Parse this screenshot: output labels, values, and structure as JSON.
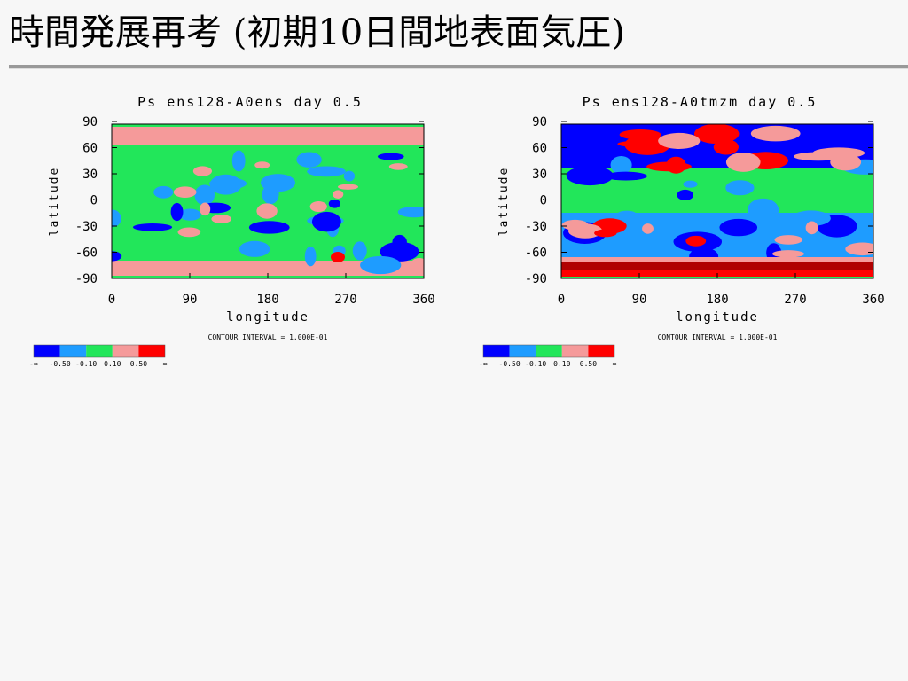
{
  "title": "時間発展再考 (初期10日間地表面気圧)",
  "panels": [
    {
      "title": "Ps ens128-A0ens  day 0.5",
      "style": "ens",
      "yticks": [
        "90",
        "60",
        "30",
        "0",
        "-30",
        "-60",
        "-90"
      ],
      "xticks": [
        "0",
        "90",
        "180",
        "270",
        "360"
      ],
      "xlabel": "longitude",
      "ylabel": "latitude",
      "contour_interval": "CONTOUR INTERVAL = 1.000E-01",
      "legend": [
        "-∞",
        "-0.50",
        "-0.10",
        "0.10",
        "0.50",
        "∞"
      ]
    },
    {
      "title": "Ps ens128-A0tmzm day 0.5",
      "style": "tmzm",
      "yticks": [
        "90",
        "60",
        "30",
        "0",
        "-30",
        "-60",
        "-90"
      ],
      "xticks": [
        "0",
        "90",
        "180",
        "270",
        "360"
      ],
      "xlabel": "longitude",
      "ylabel": "latitude",
      "contour_interval": "CONTOUR INTERVAL = 1.000E-01",
      "legend": [
        "-∞",
        "-0.50",
        "-0.10",
        "0.10",
        "0.50",
        "∞"
      ]
    }
  ]
}
